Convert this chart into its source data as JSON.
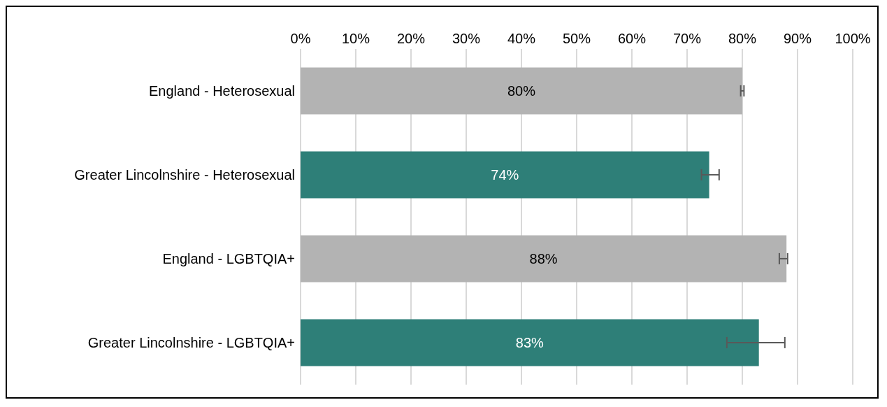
{
  "chart_data": {
    "type": "bar",
    "orientation": "horizontal",
    "categories": [
      "England - Heterosexual",
      "Greater Lincolnshire - Heterosexual",
      "England - LGBTQIA+",
      "Greater Lincolnshire - LGBTQIA+"
    ],
    "values": [
      80,
      74,
      88,
      83
    ],
    "colors": [
      "#b3b3b3",
      "#2e7f78",
      "#b3b3b3",
      "#2e7f78"
    ],
    "errors": [
      [
        79.7,
        80.3
      ],
      [
        72.6,
        75.8
      ],
      [
        86.7,
        88.2
      ],
      [
        77.2,
        87.7
      ]
    ],
    "xlim": [
      0,
      100
    ],
    "xticks": [
      {
        "value": 0,
        "label": "0%"
      },
      {
        "value": 10,
        "label": "10%"
      },
      {
        "value": 20,
        "label": "20%"
      },
      {
        "value": 30,
        "label": "30%"
      },
      {
        "value": 40,
        "label": "40%"
      },
      {
        "value": 50,
        "label": "50%"
      },
      {
        "value": 60,
        "label": "60%"
      },
      {
        "value": 70,
        "label": "70%"
      },
      {
        "value": 80,
        "label": "80%"
      },
      {
        "value": 90,
        "label": "90%"
      },
      {
        "value": 100,
        "label": "100%"
      }
    ],
    "value_labels": [
      "80%",
      "74%",
      "88%",
      "83%"
    ],
    "grid": "x"
  }
}
